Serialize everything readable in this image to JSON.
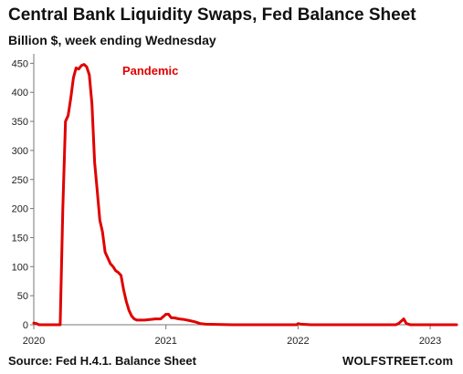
{
  "chart_data": {
    "type": "line",
    "title": "Central Bank Liquidity Swaps, Fed Balance Sheet",
    "subtitle": "Billion $, week ending Wednesday",
    "xlabel": "",
    "ylabel": "",
    "x_ticks": [
      "2020",
      "2021",
      "2022",
      "2023"
    ],
    "y_ticks": [
      0,
      50,
      100,
      150,
      200,
      250,
      300,
      350,
      400,
      450
    ],
    "xlim": [
      2020.0,
      2023.2
    ],
    "ylim": [
      0,
      460
    ],
    "grid": false,
    "annotations": [
      {
        "text": "Pandemic",
        "x": 2020.67,
        "y": 430
      }
    ],
    "series": [
      {
        "color": "#e00000",
        "x": [
          2020.0,
          2020.02,
          2020.04,
          2020.2,
          2020.22,
          2020.24,
          2020.26,
          2020.28,
          2020.3,
          2020.32,
          2020.34,
          2020.36,
          2020.38,
          2020.4,
          2020.42,
          2020.44,
          2020.46,
          2020.48,
          2020.5,
          2020.52,
          2020.54,
          2020.56,
          2020.58,
          2020.6,
          2020.62,
          2020.64,
          2020.66,
          2020.68,
          2020.7,
          2020.72,
          2020.74,
          2020.76,
          2020.78,
          2020.8,
          2020.84,
          2020.88,
          2020.92,
          2020.96,
          2020.98,
          2021.0,
          2021.02,
          2021.04,
          2021.06,
          2021.1,
          2021.14,
          2021.18,
          2021.22,
          2021.26,
          2021.3,
          2021.5,
          2021.8,
          2021.99,
          2022.0,
          2022.02,
          2022.1,
          2022.5,
          2022.7,
          2022.74,
          2022.76,
          2022.78,
          2022.8,
          2022.82,
          2022.85,
          2023.2
        ],
        "values": [
          3,
          2,
          0,
          0,
          200,
          350,
          360,
          390,
          425,
          442,
          440,
          446,
          448,
          444,
          430,
          380,
          280,
          230,
          180,
          160,
          125,
          115,
          105,
          100,
          93,
          90,
          85,
          60,
          40,
          25,
          15,
          10,
          8,
          8,
          8,
          9,
          10,
          10,
          14,
          18,
          18,
          12,
          12,
          10,
          9,
          7,
          5,
          2,
          1,
          0,
          0,
          0,
          2,
          1,
          0,
          0,
          0,
          0,
          2,
          6,
          10,
          2,
          0,
          0
        ]
      }
    ]
  },
  "source": "Source: Fed H.4.1. Balance Sheet",
  "brand": "WOLFSTREET.com"
}
